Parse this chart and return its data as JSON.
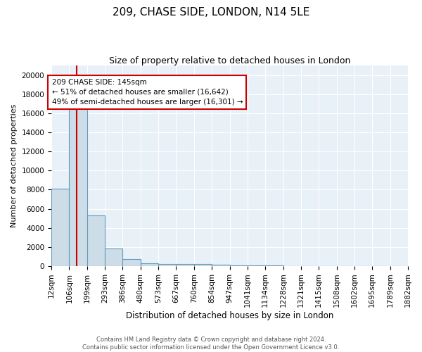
{
  "title1": "209, CHASE SIDE, LONDON, N14 5LE",
  "title2": "Size of property relative to detached houses in London",
  "xlabel": "Distribution of detached houses by size in London",
  "ylabel": "Number of detached properties",
  "bin_labels": [
    "12sqm",
    "106sqm",
    "199sqm",
    "293sqm",
    "386sqm",
    "480sqm",
    "573sqm",
    "667sqm",
    "760sqm",
    "854sqm",
    "947sqm",
    "1041sqm",
    "1134sqm",
    "1228sqm",
    "1321sqm",
    "1415sqm",
    "1508sqm",
    "1602sqm",
    "1695sqm",
    "1789sqm",
    "1882sqm"
  ],
  "bar_heights": [
    8100,
    16500,
    5300,
    1850,
    700,
    310,
    220,
    200,
    185,
    110,
    50,
    40,
    35,
    30,
    25,
    22,
    20,
    18,
    15,
    12
  ],
  "bar_color": "#ccdde8",
  "bar_edge_color": "#6699bb",
  "property_bin": 1,
  "property_line_color": "#cc0000",
  "annotation_text": "209 CHASE SIDE: 145sqm\n← 51% of detached houses are smaller (16,642)\n49% of semi-detached houses are larger (16,301) →",
  "annotation_box_color": "#ffffff",
  "annotation_box_edge_color": "#cc0000",
  "ylim": [
    0,
    21000
  ],
  "yticks": [
    0,
    2000,
    4000,
    6000,
    8000,
    10000,
    12000,
    14000,
    16000,
    18000,
    20000
  ],
  "background_color": "#e8f0f8",
  "footer_text": "Contains HM Land Registry data © Crown copyright and database right 2024.\nContains public sector information licensed under the Open Government Licence v3.0.",
  "title1_fontsize": 11,
  "title2_fontsize": 9,
  "ylabel_fontsize": 8,
  "xlabel_fontsize": 8.5,
  "tick_fontsize": 7.5,
  "annot_fontsize": 7.5,
  "footer_fontsize": 6
}
